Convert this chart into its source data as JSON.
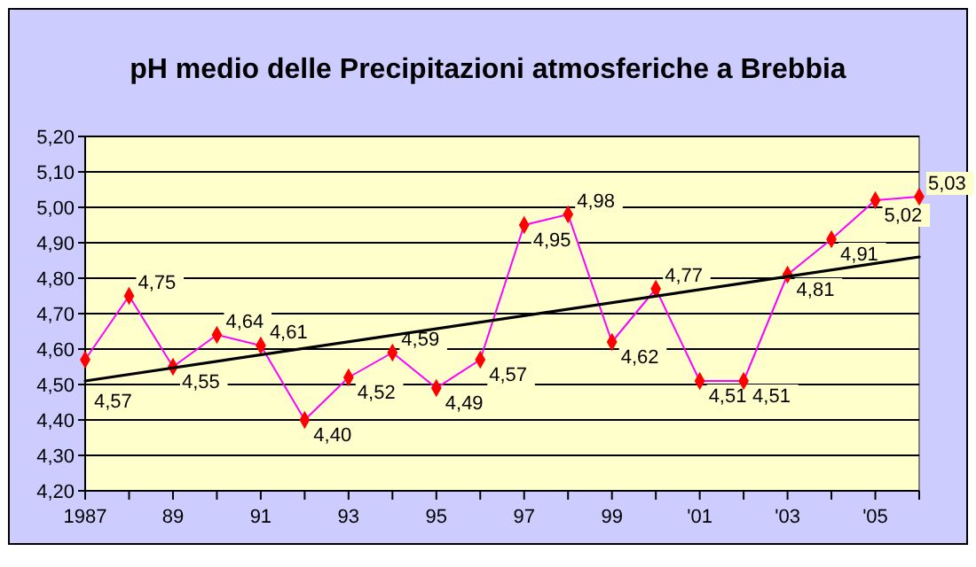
{
  "chart_data": {
    "type": "line",
    "title": "pH medio delle Precipitazioni atmosferiche a Brebbia",
    "x": [
      1987,
      1988,
      1989,
      1990,
      1991,
      1992,
      1993,
      1994,
      1995,
      1996,
      1997,
      1998,
      1999,
      2000,
      2001,
      2002,
      2003,
      2004,
      2005,
      2006
    ],
    "series": [
      {
        "color": "#ff00ff",
        "marker": "diamond",
        "values": [
          4.57,
          4.75,
          4.55,
          4.64,
          4.61,
          4.4,
          4.52,
          4.59,
          4.49,
          4.57,
          4.95,
          4.98,
          4.62,
          4.77,
          4.51,
          4.51,
          4.81,
          4.91,
          5.02,
          5.03
        ],
        "value_labels": [
          "4,57",
          "4,75",
          "4,55",
          "4,64",
          "4,61",
          "4,40",
          "4,52",
          "4,59",
          "4,49",
          "4,57",
          "4,95",
          "4,98",
          "4,62",
          "4,77",
          "4,51",
          "4,51",
          "4,81",
          "4,91",
          "5,02",
          "5,03"
        ]
      },
      {
        "color": "#000000",
        "marker": "none",
        "x": [
          1987,
          2006
        ],
        "values": [
          4.51,
          4.86
        ]
      }
    ],
    "xlim": [
      1987,
      2006
    ],
    "xticks": [
      {
        "value": 1987,
        "label": "1987"
      },
      {
        "value": 1988,
        "label": null
      },
      {
        "value": 1989,
        "label": "89"
      },
      {
        "value": 1990,
        "label": null
      },
      {
        "value": 1991,
        "label": "91"
      },
      {
        "value": 1992,
        "label": null
      },
      {
        "value": 1993,
        "label": "93"
      },
      {
        "value": 1994,
        "label": null
      },
      {
        "value": 1995,
        "label": "95"
      },
      {
        "value": 1996,
        "label": null
      },
      {
        "value": 1997,
        "label": "97"
      },
      {
        "value": 1998,
        "label": null
      },
      {
        "value": 1999,
        "label": "99"
      },
      {
        "value": 2000,
        "label": null
      },
      {
        "value": 2001,
        "label": "'01"
      },
      {
        "value": 2002,
        "label": null
      },
      {
        "value": 2003,
        "label": "'03"
      },
      {
        "value": 2004,
        "label": null
      },
      {
        "value": 2005,
        "label": "'05"
      },
      {
        "value": 2006,
        "label": null
      }
    ],
    "ylim": [
      4.2,
      5.2
    ],
    "yticks": [
      {
        "value": 4.2,
        "label": "4,20"
      },
      {
        "value": 4.3,
        "label": "4,30"
      },
      {
        "value": 4.4,
        "label": "4,40"
      },
      {
        "value": 4.5,
        "label": "4,50"
      },
      {
        "value": 4.6,
        "label": "4,60"
      },
      {
        "value": 4.7,
        "label": "4,70"
      },
      {
        "value": 4.8,
        "label": "4,80"
      },
      {
        "value": 4.9,
        "label": "4,90"
      },
      {
        "value": 5.0,
        "label": "5,00"
      },
      {
        "value": 5.1,
        "label": "5,10"
      },
      {
        "value": 5.2,
        "label": "5,20"
      }
    ],
    "grid": "y"
  }
}
